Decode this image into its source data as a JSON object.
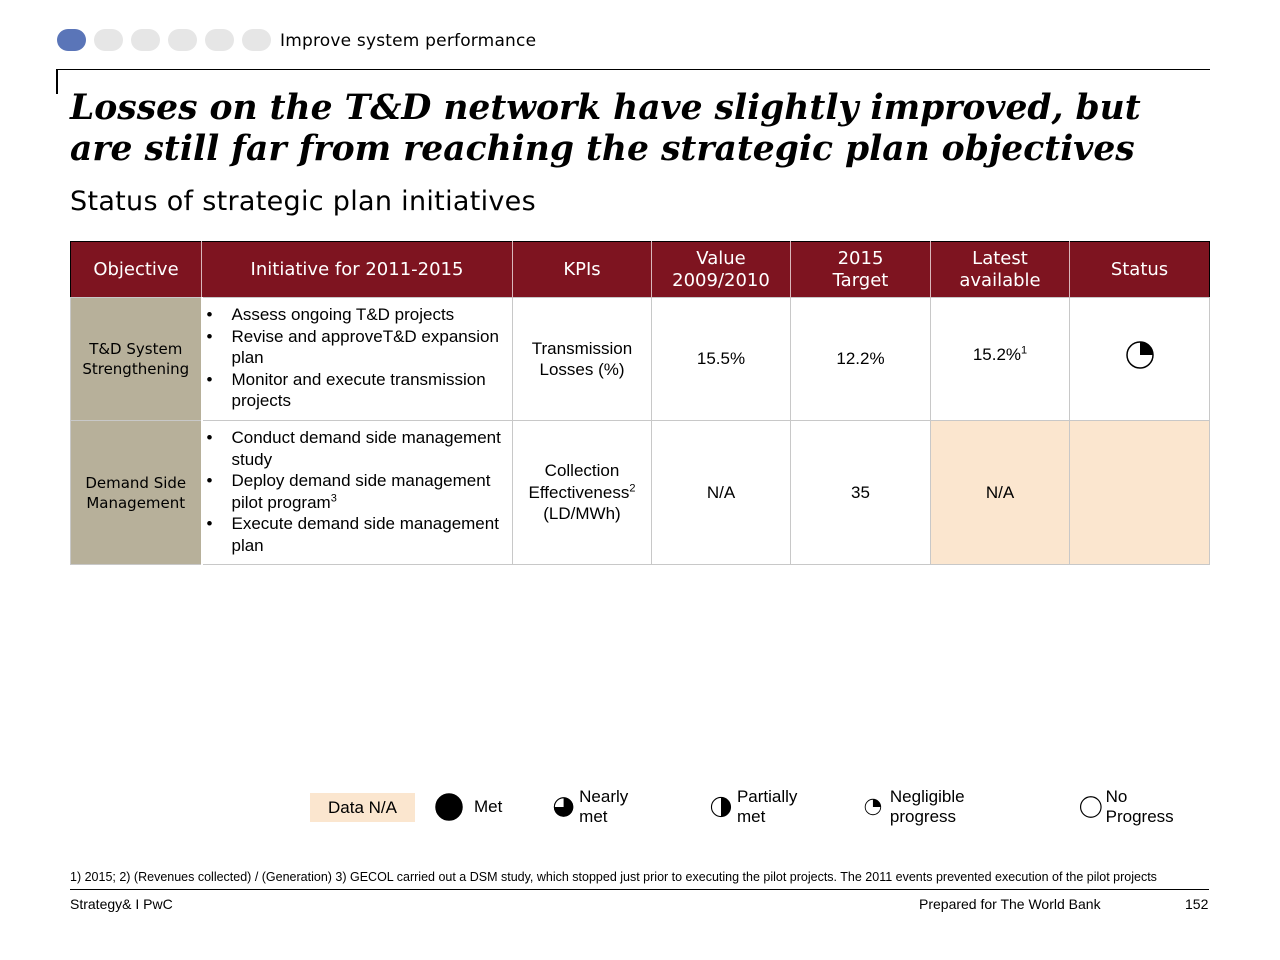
{
  "header": {
    "section_title": "Improve system performance",
    "progress_total": 6,
    "progress_current": 1,
    "active_color": "#5a75b8",
    "inactive_color": "#e6e6e6"
  },
  "title": "Losses on the T&D network have slightly improved, but are still far from reaching the strategic plan objectives",
  "subtitle": "Status of strategic plan initiatives",
  "table": {
    "header_color": "#7e1420",
    "columns": [
      "Objective",
      "Initiative for 2011-2015",
      "KPIs",
      "Value 2009/2010",
      "2015 Target",
      "Latest available",
      "Status"
    ],
    "rows": [
      {
        "objective": "T&D System Strengthening",
        "initiatives": [
          "Assess ongoing T&D projects",
          "Revise and approveT&D expansion plan",
          "Monitor and execute transmission projects"
        ],
        "kpi": "Transmission Losses (%)",
        "value_2009_2010": "15.5%",
        "target_2015": "12.2%",
        "latest": "15.2%",
        "latest_sup": "1",
        "status": "Negligible progress",
        "status_icon": "negligible-progress-icon"
      },
      {
        "objective": "Demand Side Management",
        "initiatives": [
          "Conduct demand side management study",
          "Deploy demand side management pilot program",
          "Execute demand side management plan"
        ],
        "initiative_sup_index": 1,
        "initiative_sup": "3",
        "kpi_line1": "Collection",
        "kpi_line2": "Effectiveness",
        "kpi_sup": "2",
        "kpi_line3": "(LD/MWh)",
        "value_2009_2010": "N/A",
        "target_2015": "35",
        "latest": "N/A",
        "status": "Data N/A"
      }
    ]
  },
  "legend": {
    "data_na": "Data N/A",
    "data_na_color": "#fbe6cf",
    "items": [
      {
        "label": "Met",
        "icon": "met-icon"
      },
      {
        "label": "Nearly met",
        "icon": "nearly-met-icon"
      },
      {
        "label": "Partially met",
        "icon": "partially-met-icon"
      },
      {
        "label": "Negligible progress",
        "icon": "negligible-progress-icon"
      },
      {
        "label": "No Progress",
        "icon": "no-progress-icon"
      }
    ]
  },
  "footnote": "1) 2015; 2) (Revenues collected) / (Generation)  3) GECOL carried out a DSM study, which stopped just prior to executing the pilot projects. The 2011 events prevented execution of the pilot projects",
  "footer": {
    "left": "Strategy& I PwC",
    "middle": "Prepared for The World Bank",
    "page": "152"
  }
}
